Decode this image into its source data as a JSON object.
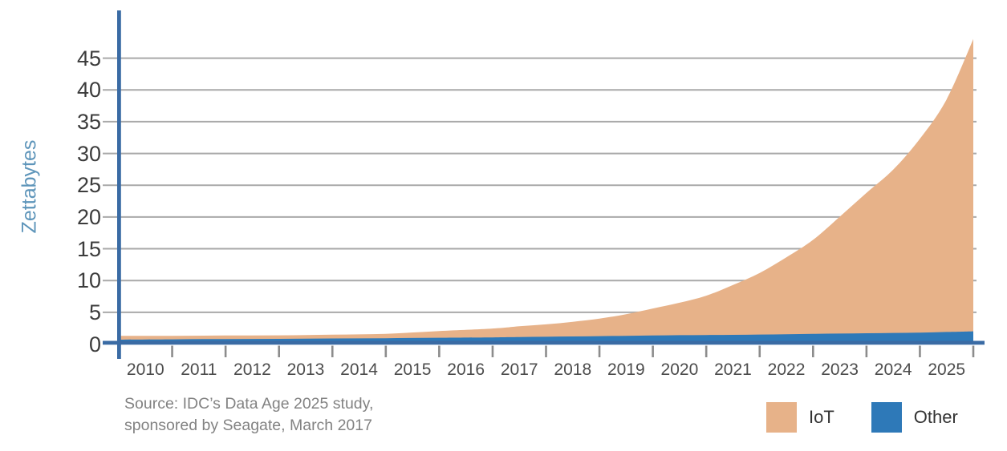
{
  "page": {
    "background": "#ffffff"
  },
  "axis": {
    "line_color": "#3a6ba4",
    "grid_color": "#a9a9a9",
    "tick_color": "#8c8c8c"
  },
  "source": {
    "line1": "Source: IDC’s Data Age 2025 study,",
    "line2": "sponsored by Seagate, March 2017"
  },
  "legend": {
    "items": [
      {
        "label": "IoT",
        "color": "#e7b289"
      },
      {
        "label": "Other",
        "color": "#2e79b8"
      }
    ]
  },
  "chart_data": {
    "type": "area",
    "stacked": true,
    "ylabel": "Zettabytes",
    "xlabel": "",
    "xlim": [
      2010,
      2026
    ],
    "ylim": [
      0,
      50
    ],
    "grid": "horizontal",
    "legend_position": "bottom-right",
    "y_ticks": [
      0,
      5,
      10,
      15,
      20,
      25,
      30,
      35,
      40,
      45
    ],
    "x_tick_labels": [
      "2010",
      "2011",
      "2012",
      "2013",
      "2014",
      "2015",
      "2016",
      "2017",
      "2018",
      "2019",
      "2020",
      "2021",
      "2022",
      "2023",
      "2024",
      "2025"
    ],
    "x": [
      2010,
      2011,
      2012,
      2013,
      2014,
      2015,
      2016,
      2017,
      2017.5,
      2018,
      2018.5,
      2019,
      2019.5,
      2020,
      2020.5,
      2021,
      2021.5,
      2022,
      2022.5,
      2023,
      2023.5,
      2024,
      2024.5,
      2025,
      2025.5,
      2026
    ],
    "series": [
      {
        "name": "IoT",
        "color": "#e7b289",
        "values": [
          0.6,
          0.55,
          0.55,
          0.55,
          0.6,
          0.7,
          1.05,
          1.4,
          1.7,
          1.95,
          2.3,
          2.75,
          3.4,
          4.25,
          5.1,
          6.2,
          7.85,
          9.7,
          12.1,
          14.8,
          18.4,
          22.1,
          25.7,
          30.5,
          36.6,
          46.0
        ]
      },
      {
        "name": "Other",
        "color": "#2e79b8",
        "values": [
          0.7,
          0.75,
          0.8,
          0.82,
          0.88,
          0.92,
          1.0,
          1.05,
          1.1,
          1.15,
          1.2,
          1.25,
          1.3,
          1.35,
          1.4,
          1.42,
          1.45,
          1.5,
          1.55,
          1.6,
          1.65,
          1.7,
          1.75,
          1.8,
          1.9,
          2.0
        ]
      }
    ],
    "stack_order": [
      "Other",
      "IoT"
    ]
  }
}
